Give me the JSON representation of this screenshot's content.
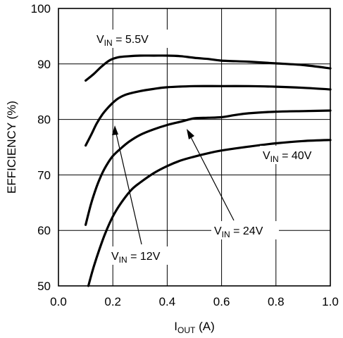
{
  "chart_data": {
    "type": "line",
    "xlabel": {
      "main": "I",
      "sub": "OUT",
      "unit": " (A)"
    },
    "ylabel": "EFFICIENCY (%)",
    "xlim": [
      0.0,
      1.0
    ],
    "ylim": [
      50,
      100
    ],
    "x_ticks": [
      "0.0",
      "0.2",
      "0.4",
      "0.6",
      "0.8",
      "1.0"
    ],
    "y_ticks": [
      "50",
      "60",
      "70",
      "80",
      "90",
      "100"
    ],
    "grid": true,
    "series": [
      {
        "name": "VIN = 5.5V",
        "label": {
          "main": "V",
          "sub": "IN",
          "rest": " = 5.5V"
        },
        "x": [
          0.1,
          0.13,
          0.16,
          0.19,
          0.22,
          0.26,
          0.3,
          0.35,
          0.4,
          0.45,
          0.5,
          0.55,
          0.6,
          0.7,
          0.8,
          0.9,
          1.0
        ],
        "y": [
          87.0,
          88.2,
          89.6,
          90.7,
          91.2,
          91.4,
          91.5,
          91.5,
          91.5,
          91.4,
          91.1,
          90.9,
          90.6,
          90.4,
          90.1,
          89.8,
          89.2
        ]
      },
      {
        "name": "VIN = 12V",
        "label": {
          "main": "V",
          "sub": "IN",
          "rest": " = 12V"
        },
        "x": [
          0.1,
          0.12,
          0.14,
          0.16,
          0.18,
          0.2,
          0.22,
          0.25,
          0.3,
          0.35,
          0.4,
          0.5,
          0.6,
          0.7,
          0.8,
          0.9,
          1.0
        ],
        "y": [
          75.3,
          77.2,
          79.2,
          80.8,
          82.0,
          83.0,
          83.8,
          84.5,
          85.1,
          85.5,
          85.8,
          86.0,
          86.0,
          86.0,
          85.9,
          85.7,
          85.4
        ]
      },
      {
        "name": "VIN = 24V",
        "label": {
          "main": "V",
          "sub": "IN",
          "rest": " = 24V"
        },
        "x": [
          0.1,
          0.12,
          0.14,
          0.16,
          0.18,
          0.2,
          0.23,
          0.26,
          0.3,
          0.35,
          0.4,
          0.45,
          0.5,
          0.55,
          0.6,
          0.65,
          0.7,
          0.8,
          0.9,
          1.0
        ],
        "y": [
          61.0,
          64.8,
          67.8,
          70.2,
          72.0,
          73.4,
          74.8,
          76.0,
          77.2,
          78.2,
          79.0,
          79.6,
          80.2,
          80.3,
          80.4,
          80.8,
          81.1,
          81.4,
          81.5,
          81.6
        ]
      },
      {
        "name": "VIN = 40V",
        "label": {
          "main": "V",
          "sub": "IN",
          "rest": " = 40V"
        },
        "x": [
          0.11,
          0.13,
          0.15,
          0.17,
          0.19,
          0.21,
          0.24,
          0.27,
          0.3,
          0.35,
          0.4,
          0.45,
          0.5,
          0.55,
          0.6,
          0.7,
          0.8,
          0.9,
          1.0
        ],
        "y": [
          50.0,
          53.5,
          56.5,
          59.2,
          61.5,
          63.4,
          65.6,
          67.4,
          68.6,
          70.3,
          71.6,
          72.6,
          73.3,
          73.9,
          74.4,
          75.1,
          75.7,
          76.1,
          76.3
        ]
      }
    ]
  }
}
